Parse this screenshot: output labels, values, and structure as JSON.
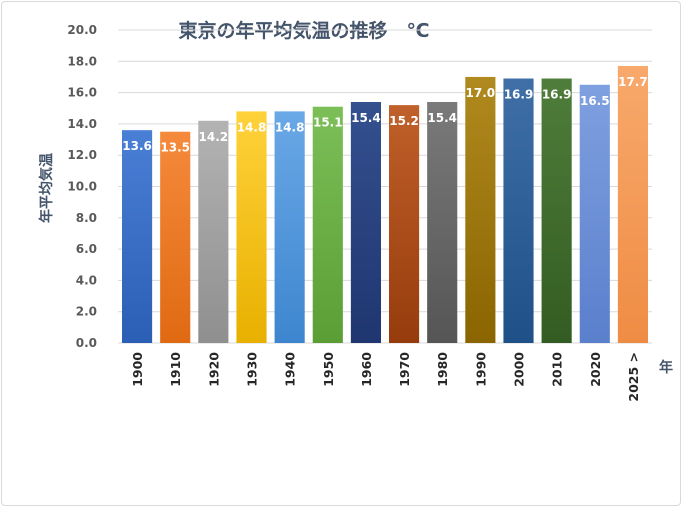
{
  "chart_data": {
    "type": "bar",
    "title": "東京の年平均気温の推移　℃",
    "ylabel": "年平均気温",
    "xunit": "年",
    "categories": [
      "1900",
      "1910",
      "1920",
      "1930",
      "1940",
      "1950",
      "1960",
      "1970",
      "1980",
      "1990",
      "2000",
      "2010",
      "2020",
      "2025 >"
    ],
    "values": [
      13.6,
      13.5,
      14.2,
      14.8,
      14.8,
      15.1,
      15.4,
      15.2,
      15.4,
      17.0,
      16.9,
      16.9,
      16.5,
      17.7
    ],
    "data_labels": [
      "13.6",
      "13.5",
      "14.2",
      "14.8",
      "14.8",
      "15.1",
      "15.4",
      "15.2",
      "15.4",
      "17.0",
      "16.9",
      "16.9",
      "16.5",
      "17.7"
    ],
    "ylim": [
      0,
      20
    ],
    "yticks": [
      "0.0",
      "2.0",
      "4.0",
      "6.0",
      "8.0",
      "10.0",
      "12.0",
      "14.0",
      "16.0",
      "18.0",
      "20.0"
    ],
    "grid": true,
    "colors": [
      [
        "#4a7fd6",
        "#2b5fb5"
      ],
      [
        "#f58a3c",
        "#e06a12"
      ],
      [
        "#b3b3b3",
        "#8f8f8f"
      ],
      [
        "#ffd23a",
        "#e8b000"
      ],
      [
        "#6aa8e6",
        "#3d86cf"
      ],
      [
        "#7cbf58",
        "#5a9e35"
      ],
      [
        "#34508f",
        "#1f3670"
      ],
      [
        "#c0602a",
        "#963c0c"
      ],
      [
        "#7a7a7a",
        "#555555"
      ],
      [
        "#b08a1e",
        "#8a6500"
      ],
      [
        "#3f6fa6",
        "#1f5088"
      ],
      [
        "#4f7d3a",
        "#335c22"
      ],
      [
        "#7fa0e0",
        "#5a7fcc"
      ],
      [
        "#f8a96c",
        "#ef8c44"
      ]
    ]
  }
}
